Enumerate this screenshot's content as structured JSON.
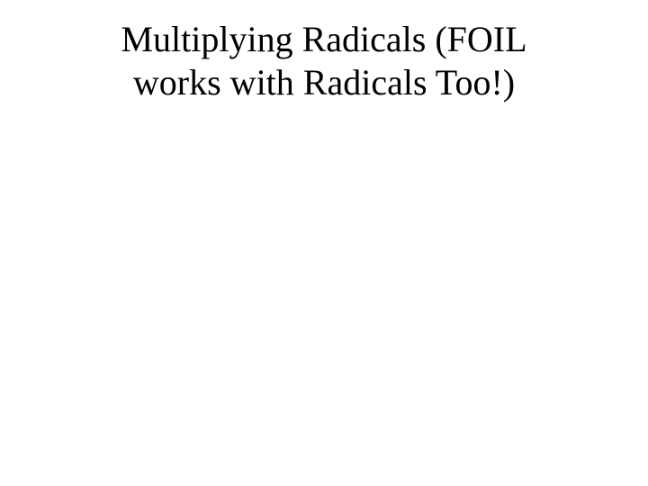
{
  "slide": {
    "title_line1": "Multiplying Radicals (FOIL",
    "title_line2": "works with Radicals Too!)",
    "background_color": "#ffffff",
    "text_color": "#000000",
    "font_family": "Times New Roman",
    "title_fontsize": 40,
    "title_align": "center"
  }
}
